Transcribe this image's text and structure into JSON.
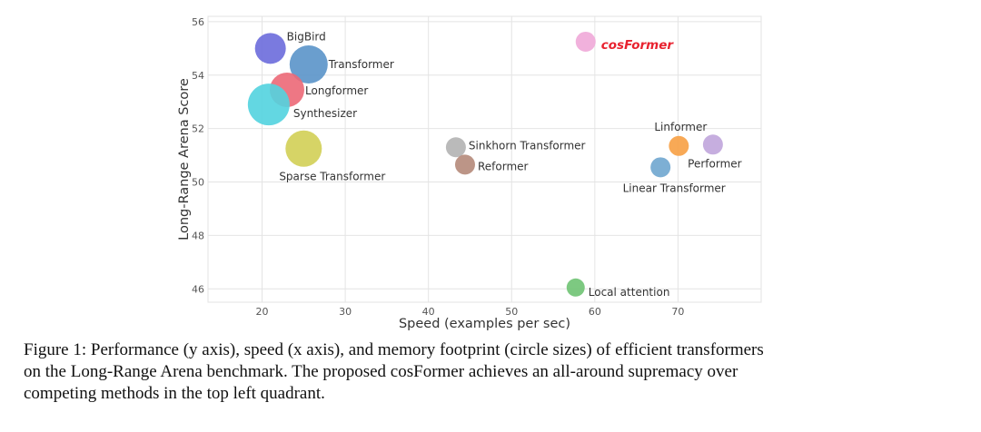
{
  "chart_data": {
    "type": "scatter",
    "title": "",
    "xlabel": "Speed (examples per sec)",
    "ylabel": "Long-Range Arena Score",
    "xlim": [
      13.5,
      80
    ],
    "ylim": [
      45.5,
      56.2
    ],
    "xticks": [
      20,
      30,
      40,
      50,
      60,
      70
    ],
    "yticks": [
      46,
      48,
      50,
      52,
      54,
      56
    ],
    "grid": true,
    "size_encoding": "memory footprint",
    "points": [
      {
        "name": "BigBird",
        "x": 21,
        "y": 55.0,
        "size": 17,
        "color": "#6b6bdc"
      },
      {
        "name": "Transformer",
        "x": 25.6,
        "y": 54.4,
        "size": 21,
        "color": "#5a93c9"
      },
      {
        "name": "Longformer",
        "x": 23,
        "y": 53.45,
        "size": 19,
        "color": "#ec6877"
      },
      {
        "name": "Synthesizer",
        "x": 20.8,
        "y": 52.9,
        "size": 23,
        "color": "#52d3df"
      },
      {
        "name": "Sparse Transformer",
        "x": 25,
        "y": 51.25,
        "size": 20,
        "color": "#d1cf55"
      },
      {
        "name": "Sinkhorn Transformer",
        "x": 43.3,
        "y": 51.3,
        "size": 11,
        "color": "#b3b3b3"
      },
      {
        "name": "Reformer",
        "x": 44.4,
        "y": 50.65,
        "size": 11,
        "color": "#b5897a"
      },
      {
        "name": "cosFormer",
        "x": 58.9,
        "y": 55.25,
        "size": 11,
        "color": "#f0a9d8"
      },
      {
        "name": "Linformer",
        "x": 70.1,
        "y": 51.35,
        "size": 11,
        "color": "#f7a044"
      },
      {
        "name": "Performer",
        "x": 74.2,
        "y": 51.4,
        "size": 11,
        "color": "#c0a5db"
      },
      {
        "name": "Linear Transformer",
        "x": 67.9,
        "y": 50.55,
        "size": 11,
        "color": "#6fa6cf"
      },
      {
        "name": "Local attention",
        "x": 57.7,
        "y": 46.05,
        "size": 10,
        "color": "#6fc373"
      }
    ]
  },
  "caption": {
    "line1": "Figure 1: Performance (y axis), speed (x axis), and memory footprint (circle sizes) of efficient transformers",
    "line2": "on the Long-Range Arena benchmark.  The proposed cosFormer achieves an all-around supremacy over",
    "line3": "competing methods in the top left quadrant."
  }
}
